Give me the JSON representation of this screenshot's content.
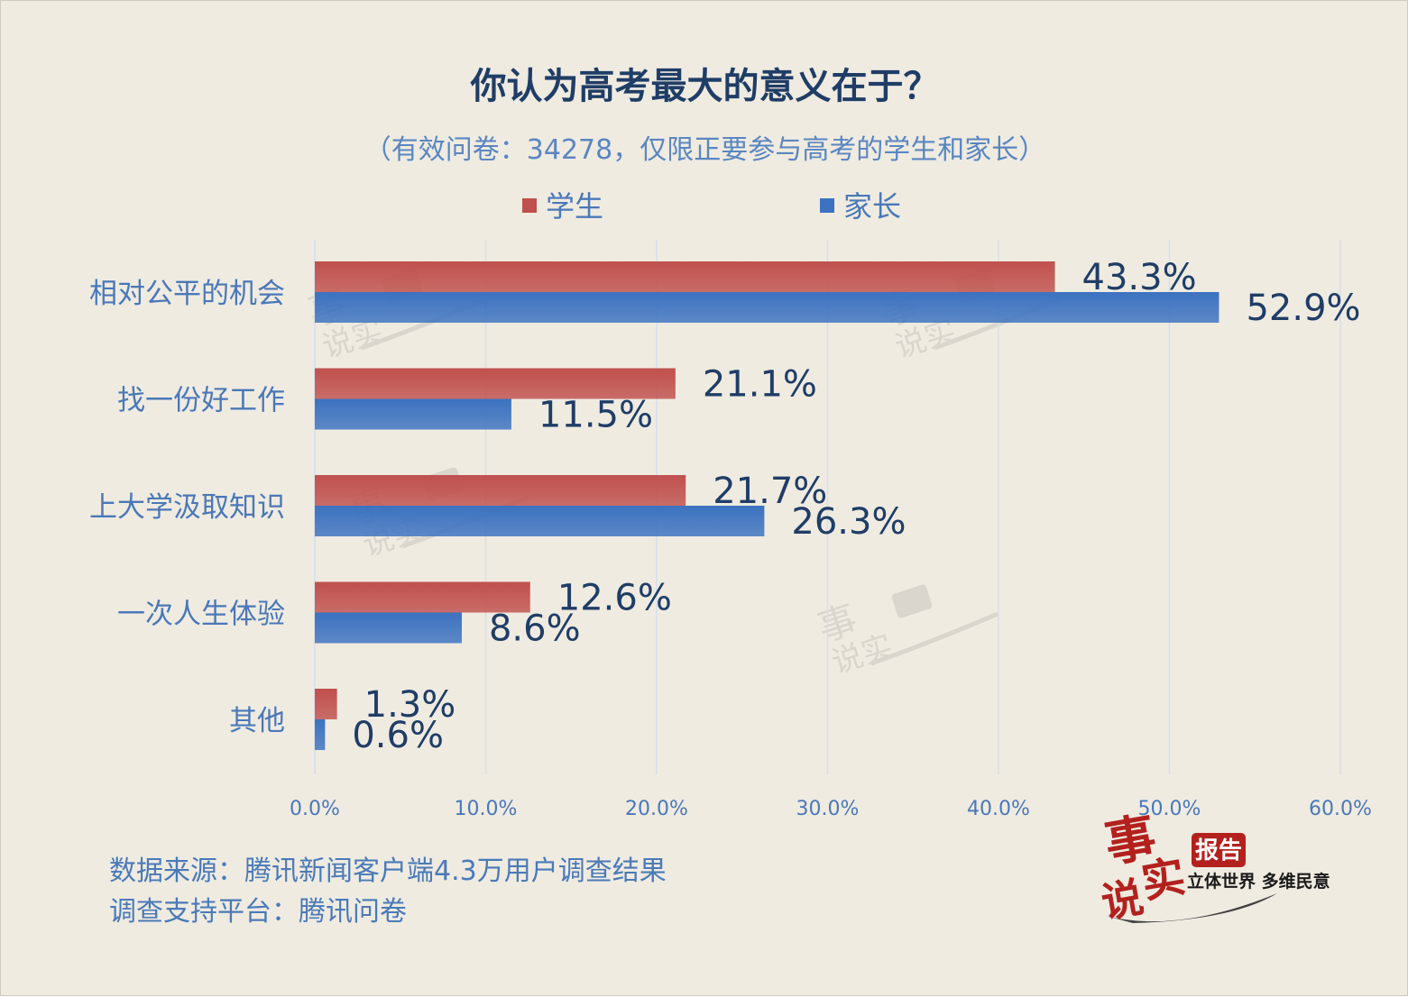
{
  "title": "你认为高考最大的意义在于？",
  "subtitle": "（有效问卷：34278，仅限正要参与高考的学生和家长）",
  "colors": {
    "students": "#c0504d",
    "parents": "#3c72c0",
    "label": "#1f3d66",
    "category": "#4a78b8",
    "axis": "#4a78b8"
  },
  "chart_data": {
    "type": "bar",
    "orientation": "horizontal",
    "categories": [
      "相对公平的机会",
      "找一份好工作",
      "上大学汲取知识",
      "一次人生体验",
      "其他"
    ],
    "series": [
      {
        "name": "学生",
        "values": [
          43.3,
          21.1,
          21.7,
          12.6,
          1.3
        ],
        "labels": [
          "43.3%",
          "21.1%",
          "21.7%",
          "12.6%",
          "1.3%"
        ]
      },
      {
        "name": "家长",
        "values": [
          52.9,
          11.5,
          26.3,
          8.6,
          0.6
        ],
        "labels": [
          "52.9%",
          "11.5%",
          "26.3%",
          "8.6%",
          "0.6%"
        ]
      }
    ],
    "xlim": [
      0,
      60
    ],
    "xticks": [
      0,
      10,
      20,
      30,
      40,
      50,
      60
    ],
    "xtick_labels": [
      "0.0%",
      "10.0%",
      "20.0%",
      "30.0%",
      "40.0%",
      "50.0%",
      "60.0%"
    ],
    "grid": "vertical",
    "legend_position": "top"
  },
  "source": {
    "line1": "数据来源：腾讯新闻客户端4.3万用户调查结果",
    "line2": "调查支持平台：腾讯问卷"
  },
  "logo": {
    "main_chars": "事实说",
    "badge": "报告",
    "slogan": "立体世界 多维民意"
  }
}
